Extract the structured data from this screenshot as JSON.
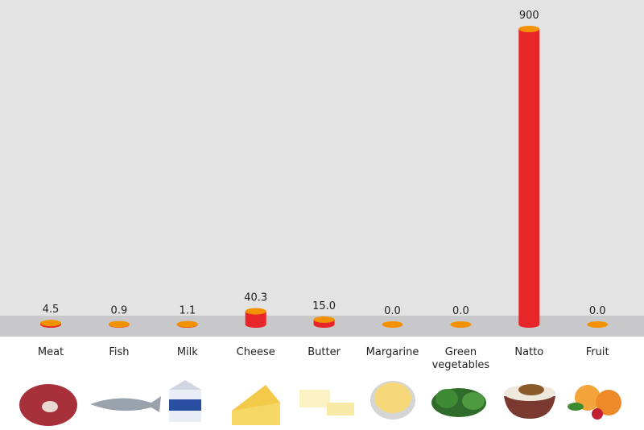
{
  "chart_data": {
    "type": "bar",
    "categories": [
      "Meat",
      "Fish",
      "Milk",
      "Cheese",
      "Butter",
      "Margarine",
      "Green vegetables",
      "Natto",
      "Fruit"
    ],
    "values": [
      4.5,
      0.9,
      1.1,
      40.3,
      15.0,
      0.0,
      0.0,
      900,
      0.0
    ],
    "value_labels": [
      "4.5",
      "0.9",
      "1.1",
      "40.3",
      "15.0",
      "0.0",
      "0.0",
      "900",
      "0.0"
    ],
    "color": "#e8262a",
    "cap_color": "#f39200"
  }
}
